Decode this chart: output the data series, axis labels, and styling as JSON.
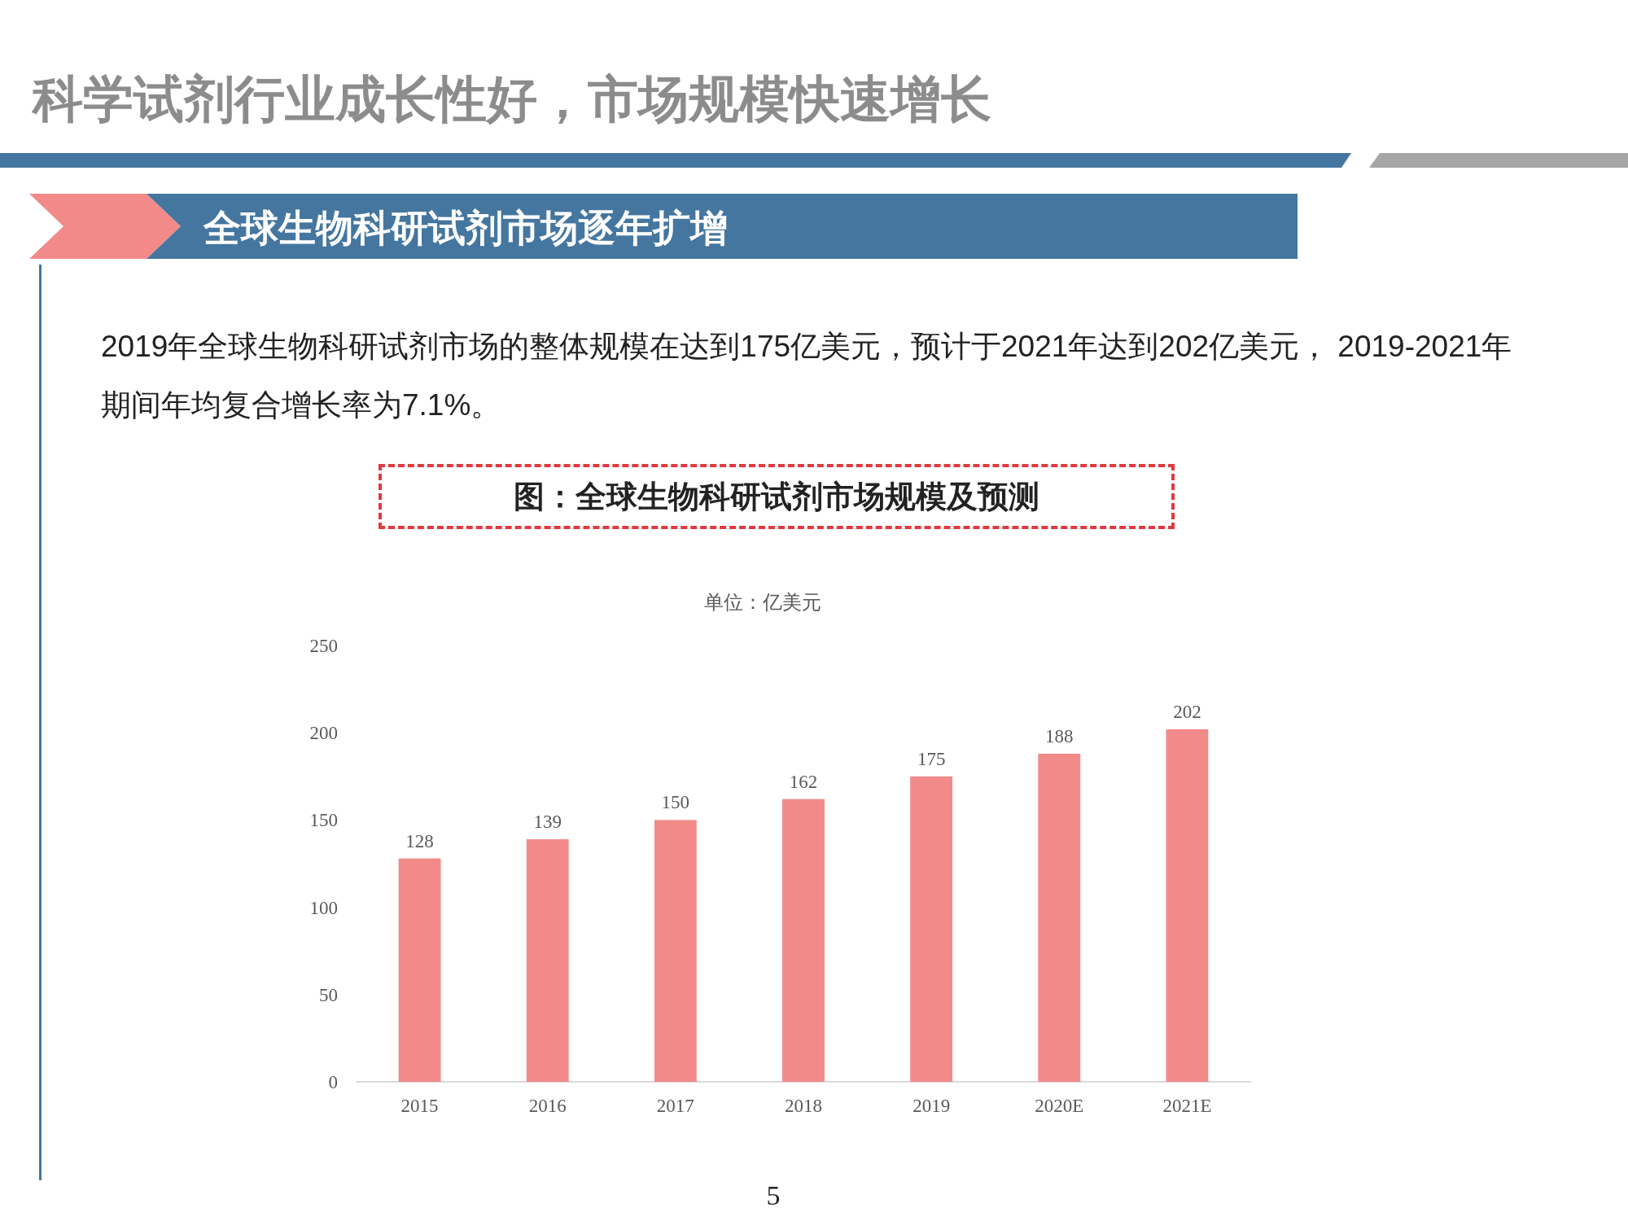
{
  "chart_data": {
    "type": "bar",
    "title": "科学试剂行业成长性好，市场规模快速增长",
    "subtitle": "全球生物科研试剂市场逐年扩增",
    "ylabel": "单位：亿美元",
    "annotations": [
      "2019年全球生物科研试剂市场的整体规模在达到175亿美元，预计于2021年达到202亿美元， 2019-2021年期间年均复合增长率为7.1%。",
      "图：全球生物科研试剂市场规模及预测",
      "5"
    ],
    "categories": [
      "2015",
      "2016",
      "2017",
      "2018",
      "2019",
      "2020E",
      "2021E"
    ],
    "values": [
      128,
      139,
      150,
      162,
      175,
      188,
      202
    ],
    "color": "#f28a8a",
    "ylim": [
      0,
      250
    ],
    "yticks": [
      0,
      50,
      100,
      150,
      200,
      250
    ],
    "data_labels": true
  }
}
